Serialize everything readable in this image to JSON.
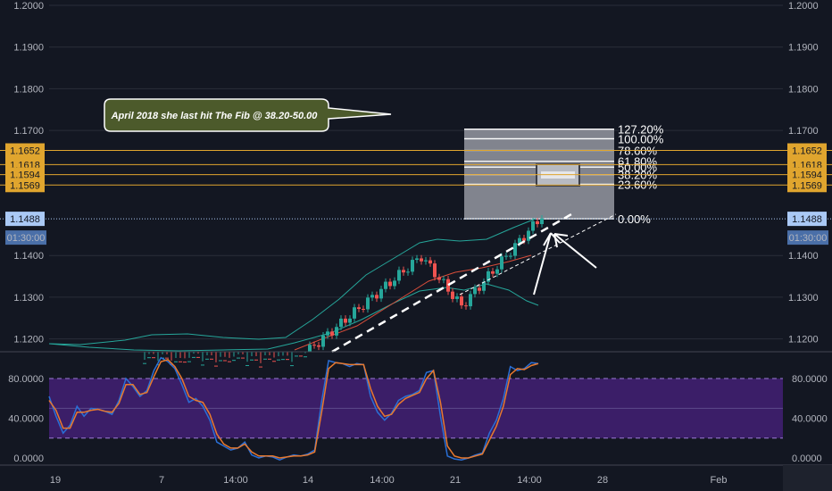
{
  "chart_data": [
    {
      "type": "candlestick",
      "title": "",
      "ylim": [
        1.1135,
        1.2
      ],
      "price_ticks": [
        "1.2000",
        "1.1900",
        "1.1800",
        "1.1700",
        "1.1400",
        "1.1300",
        "1.1200"
      ],
      "hline_badges": [
        {
          "label": "1.1652",
          "value": 1.1652,
          "color": "#e0a52e"
        },
        {
          "label": "1.1618",
          "value": 1.1618,
          "color": "#e0a52e"
        },
        {
          "label": "1.1594",
          "value": 1.1594,
          "color": "#e0a52e"
        },
        {
          "label": "1.1569",
          "value": 1.1569,
          "color": "#e0a52e"
        }
      ],
      "last_price": {
        "label": "1.1488",
        "value": 1.1488,
        "color": "#aac9f5"
      },
      "countdown": "01:30:00",
      "fib_levels": [
        {
          "label": "127.20%",
          "value": 1.1703
        },
        {
          "label": "100.00%",
          "value": 1.168
        },
        {
          "label": "78.60%",
          "value": 1.1652
        },
        {
          "label": "61.80%",
          "value": 1.1626
        },
        {
          "label": "50.00%",
          "value": 1.1612
        },
        {
          "label": "38.20%",
          "value": 1.1594
        },
        {
          "label": "23.60%",
          "value": 1.1571
        },
        {
          "label": "0.00%",
          "value": 1.1488
        }
      ],
      "callout": "April 2018 she last hit The Fib @ 38.20-50.00",
      "colors": {
        "up": "#26a69a",
        "down": "#ef5350",
        "bb": "#26a69a",
        "bb_basis": "#d84d3a",
        "fib": "#ffffff",
        "hline": "#e0a52e"
      }
    },
    {
      "type": "line",
      "title": "",
      "ylim": [
        -5,
        115
      ],
      "ticks": [
        "80.0000",
        "40.0000",
        "0.0000"
      ],
      "bands": [
        80,
        20
      ],
      "series": [
        {
          "color": "#2a6fd6",
          "values": [
            62,
            42,
            25,
            33,
            52,
            42,
            50,
            49,
            47,
            44,
            58,
            80,
            72,
            62,
            68,
            88,
            101,
            97,
            90,
            74,
            56,
            60,
            52,
            38,
            16,
            12,
            8,
            10,
            16,
            3,
            0,
            2,
            1,
            -2,
            1,
            3,
            2,
            4,
            8,
            57,
            98,
            96,
            95,
            92,
            95,
            94,
            62,
            46,
            38,
            45,
            58,
            62,
            64,
            68,
            86,
            88,
            42,
            2,
            -1,
            -2,
            0,
            3,
            5,
            25,
            38,
            60,
            92,
            88,
            90,
            96,
            95
          ]
        },
        {
          "color": "#e8792e",
          "values": [
            58,
            48,
            30,
            30,
            46,
            46,
            48,
            49,
            47,
            46,
            55,
            74,
            74,
            64,
            66,
            82,
            97,
            99,
            92,
            80,
            62,
            58,
            56,
            44,
            24,
            14,
            10,
            10,
            14,
            6,
            2,
            2,
            2,
            0,
            1,
            2,
            2,
            3,
            6,
            46,
            90,
            96,
            95,
            94,
            94,
            94,
            70,
            52,
            42,
            44,
            54,
            60,
            63,
            66,
            80,
            88,
            56,
            12,
            2,
            0,
            0,
            2,
            4,
            18,
            32,
            52,
            84,
            90,
            89,
            93,
            95
          ]
        }
      ]
    }
  ],
  "x_labels": [
    "19",
    "7",
    "14:00",
    "14",
    "14:00",
    "21",
    "14:00",
    "28",
    "Feb"
  ],
  "colors": {
    "bg": "#131722",
    "stoch_band": "#3b1e68",
    "grid": "#2a2e39"
  }
}
